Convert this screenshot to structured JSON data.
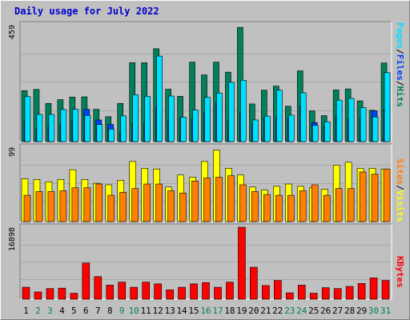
{
  "title": "Daily usage for July 2022",
  "colors": {
    "hits": "#00805c",
    "files": "#0040ff",
    "pages": "#00e0ff",
    "visits": "#ffff00",
    "sites": "#ff8000",
    "kbytes": "#ff0000",
    "weekday_label": "#000000",
    "weekend_label": "#00805c"
  },
  "chart_data": [
    {
      "type": "bar",
      "panel": "hits-files-pages",
      "categories": [
        "1",
        "2",
        "3",
        "4",
        "5",
        "6",
        "7",
        "8",
        "9",
        "10",
        "11",
        "12",
        "13",
        "14",
        "15",
        "16",
        "17",
        "18",
        "19",
        "20",
        "21",
        "22",
        "23",
        "24",
        "25",
        "26",
        "27",
        "28",
        "29",
        "30",
        "31"
      ],
      "weekend_days": [
        "2",
        "3",
        "9",
        "10",
        "16",
        "17",
        "23",
        "24",
        "30",
        "31"
      ],
      "ymax_label": "459",
      "ylim": [
        0,
        459
      ],
      "series": [
        {
          "name": "Hits",
          "values": [
            200,
            205,
            150,
            165,
            175,
            176,
            127,
            98,
            150,
            310,
            310,
            365,
            206,
            178,
            312,
            262,
            312,
            273,
            449,
            148,
            202,
            218,
            139,
            278,
            121,
            102,
            203,
            207,
            160,
            123,
            309
          ]
        },
        {
          "name": "Files",
          "values": [
            81,
            51,
            58,
            66,
            85,
            127,
            85,
            67,
            40,
            72,
            73,
            134,
            81,
            94,
            90,
            113,
            152,
            81,
            115,
            70,
            92,
            99,
            92,
            141,
            75,
            58,
            99,
            89,
            92,
            121,
            127
          ]
        },
        {
          "name": "Pages",
          "values": [
            177,
            107,
            107,
            126,
            127,
            103,
            67,
            49,
            101,
            184,
            178,
            336,
            179,
            96,
            124,
            174,
            191,
            233,
            241,
            85,
            100,
            202,
            104,
            192,
            64,
            78,
            163,
            170,
            134,
            97,
            271
          ]
        }
      ]
    },
    {
      "type": "bar",
      "panel": "visits-sites",
      "categories": [
        "1",
        "2",
        "3",
        "4",
        "5",
        "6",
        "7",
        "8",
        "9",
        "10",
        "11",
        "12",
        "13",
        "14",
        "15",
        "16",
        "17",
        "18",
        "19",
        "20",
        "21",
        "22",
        "23",
        "24",
        "25",
        "26",
        "27",
        "28",
        "29",
        "30",
        "31"
      ],
      "ymax_label": "99",
      "ylim": [
        0,
        99
      ],
      "series": [
        {
          "name": "Visits",
          "values": [
            57,
            56,
            53,
            56,
            69,
            56,
            51,
            49,
            55,
            80,
            71,
            70,
            46,
            62,
            59,
            80,
            95,
            71,
            62,
            46,
            42,
            47,
            50,
            47,
            45,
            43,
            75,
            79,
            71,
            71,
            70
          ]
        },
        {
          "name": "Sites",
          "values": [
            35,
            40,
            40,
            41,
            45,
            45,
            50,
            35,
            39,
            44,
            50,
            50,
            41,
            38,
            54,
            58,
            59,
            61,
            49,
            40,
            36,
            35,
            35,
            41,
            49,
            35,
            44,
            44,
            66,
            63,
            70
          ]
        }
      ]
    },
    {
      "type": "bar",
      "panel": "kbytes",
      "categories": [
        "1",
        "2",
        "3",
        "4",
        "5",
        "6",
        "7",
        "8",
        "9",
        "10",
        "11",
        "12",
        "13",
        "14",
        "15",
        "16",
        "17",
        "18",
        "19",
        "20",
        "21",
        "22",
        "23",
        "24",
        "25",
        "26",
        "27",
        "28",
        "29",
        "30",
        "31"
      ],
      "ymax_label": "16898",
      "ylim": [
        0,
        16898
      ],
      "series": [
        {
          "name": "KBytes",
          "values": [
            2800,
            1700,
            2500,
            2600,
            1400,
            8500,
            5300,
            3300,
            4000,
            2800,
            4000,
            3600,
            2200,
            2800,
            3600,
            3900,
            2800,
            4000,
            16898,
            7500,
            3200,
            4400,
            1500,
            3300,
            1400,
            2700,
            2500,
            3000,
            3700,
            5000,
            4400
          ]
        }
      ]
    }
  ],
  "legend": {
    "top": [
      "Pages",
      "/",
      "Files",
      "/",
      "Hits"
    ],
    "middle": [
      "Sites",
      "/",
      "Visits"
    ],
    "bottom": [
      "KBytes"
    ]
  }
}
